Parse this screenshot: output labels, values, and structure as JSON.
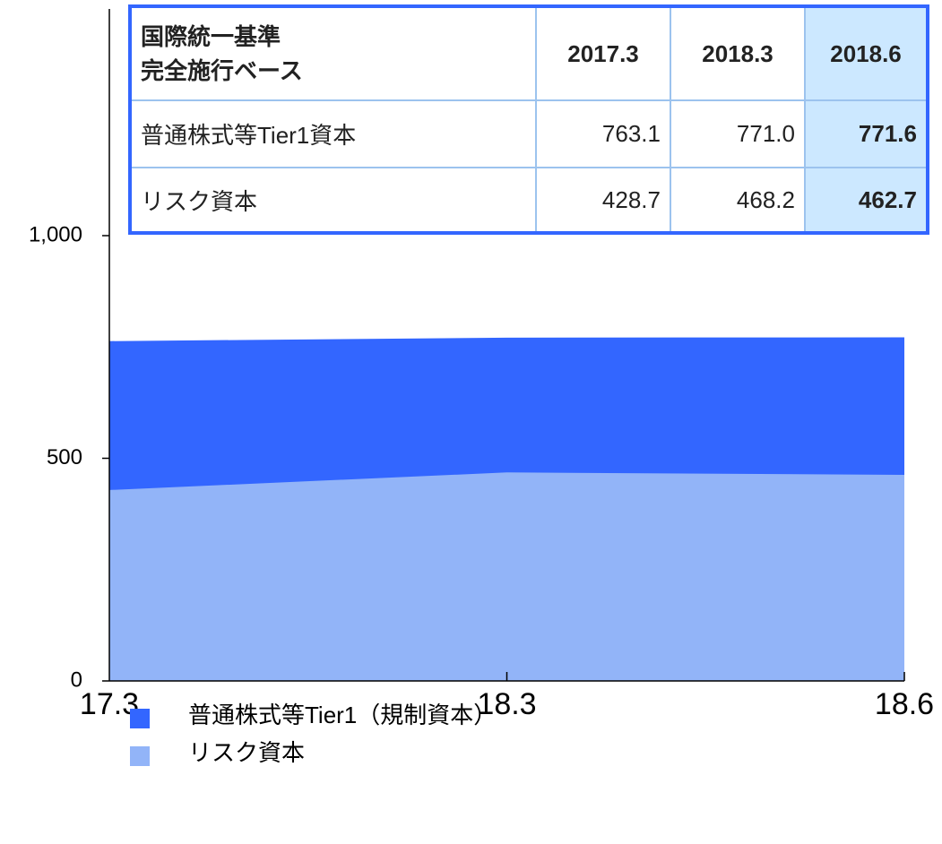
{
  "chart_data": {
    "type": "area",
    "categories": [
      "17.3",
      "18.3",
      "18.6"
    ],
    "series": [
      {
        "name": "普通株式等Tier1（規制資本）",
        "color": "#3366ff",
        "values": [
          763.1,
          771.0,
          771.6
        ]
      },
      {
        "name": "リスク資本",
        "color": "#92b4f8",
        "values": [
          428.7,
          468.2,
          462.7
        ]
      }
    ],
    "ylim": [
      0,
      1000
    ],
    "yticks": [
      0,
      500,
      {
        "value": 1000,
        "label": "1,000"
      }
    ],
    "table": {
      "header_title": [
        "国際統一基準",
        "完全施行ベース"
      ],
      "columns": [
        "2017.3",
        "2018.3",
        "2018.6"
      ],
      "rows": [
        [
          "普通株式等Tier1資本",
          "763.1",
          "771.0",
          "771.6"
        ],
        [
          "リスク資本",
          "428.7",
          "468.2",
          "462.7"
        ]
      ]
    }
  }
}
